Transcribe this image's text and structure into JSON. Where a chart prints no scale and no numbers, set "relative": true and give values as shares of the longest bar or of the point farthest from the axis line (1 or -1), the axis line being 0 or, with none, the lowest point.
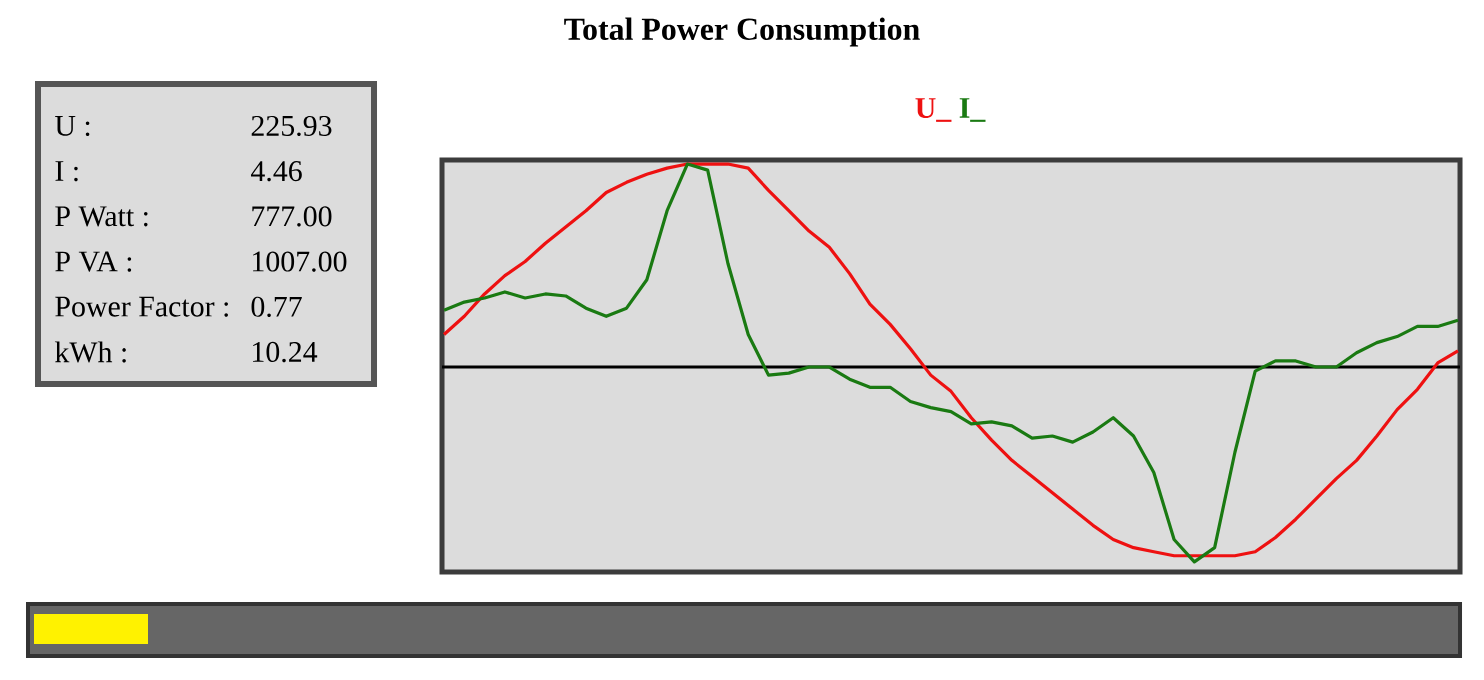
{
  "chart_data": [
    {
      "type": "other",
      "annotations": [
        "U :",
        "225.93",
        "I :",
        "4.46",
        "P Watt :",
        "777.00",
        "P VA :",
        "1007.00",
        "Power Factor :",
        "0.77",
        "kWh :",
        "10.24"
      ]
    },
    {
      "type": "line",
      "title": "Total Power Consumption",
      "relative": true,
      "legend": "top",
      "categories": [
        null,
        null,
        null,
        null,
        null,
        null,
        null,
        null,
        null,
        null,
        null,
        null,
        null,
        null,
        null,
        null,
        null,
        null,
        null,
        null,
        null,
        null,
        null,
        null,
        null,
        null,
        null,
        null,
        null,
        null,
        null,
        null,
        null,
        null,
        null,
        null,
        null,
        null,
        null,
        null,
        null,
        null,
        null,
        null,
        null,
        null,
        null,
        null,
        null,
        null,
        null
      ],
      "series": [
        {
          "name": "U_",
          "color": "#ee1111",
          "values": [
            0.16,
            0.25,
            0.36,
            0.45,
            0.52,
            0.61,
            0.69,
            0.77,
            0.86,
            0.91,
            0.95,
            0.98,
            1,
            1,
            1,
            0.98,
            0.87,
            0.77,
            0.67,
            0.59,
            0.46,
            0.31,
            0.21,
            0.09,
            -0.04,
            -0.12,
            -0.25,
            -0.36,
            -0.46,
            -0.54,
            -0.62,
            -0.7,
            -0.78,
            -0.85,
            -0.89,
            -0.91,
            -0.93,
            -0.93,
            -0.93,
            -0.93,
            -0.91,
            -0.84,
            -0.75,
            -0.65,
            -0.55,
            -0.46,
            -0.34,
            -0.21,
            -0.11,
            0.02,
            0.08
          ]
        },
        {
          "name": "I_",
          "color": "#1a7a12",
          "values": [
            0.28,
            0.32,
            0.34,
            0.37,
            0.34,
            0.36,
            0.35,
            0.29,
            0.25,
            0.29,
            0.43,
            0.77,
            1,
            0.97,
            0.51,
            0.16,
            -0.04,
            -0.03,
            0,
            0,
            -0.06,
            -0.1,
            -0.1,
            -0.17,
            -0.2,
            -0.22,
            -0.28,
            -0.27,
            -0.29,
            -0.35,
            -0.34,
            -0.37,
            -0.32,
            -0.25,
            -0.34,
            -0.52,
            -0.85,
            -0.96,
            -0.89,
            -0.42,
            -0.02,
            0.03,
            0.03,
            0,
            0,
            0.07,
            0.12,
            0.15,
            0.2,
            0.2,
            0.23
          ]
        }
      ]
    }
  ]
}
